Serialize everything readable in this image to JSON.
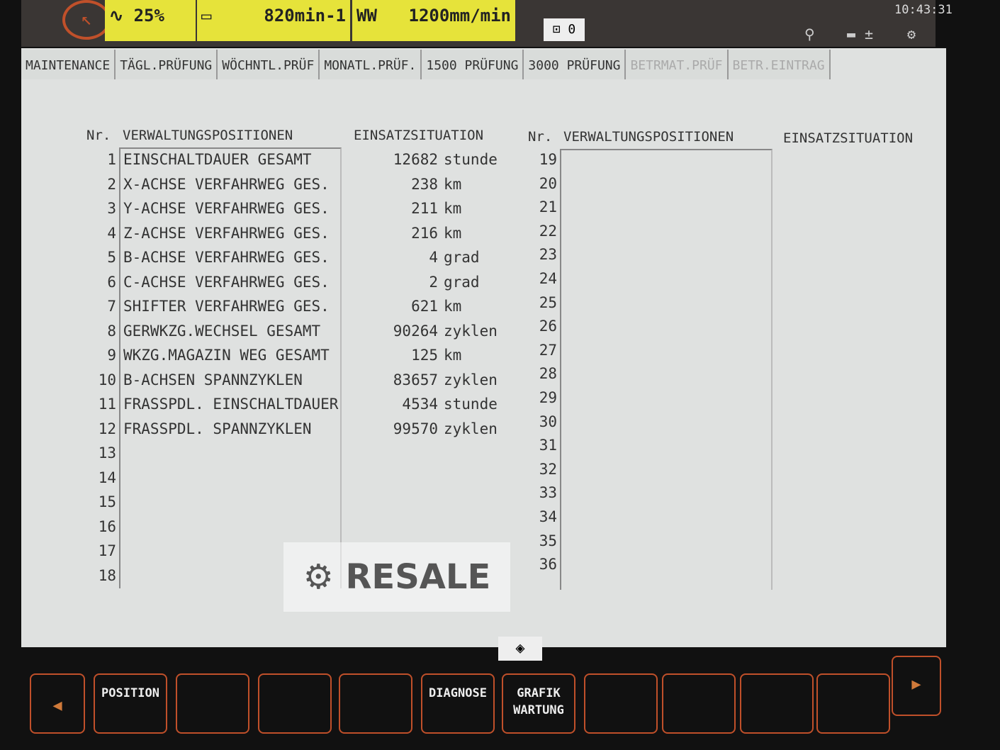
{
  "status": {
    "spindle_override": "25%",
    "spindle_speed": "820min-1",
    "feed": "1200mm/min",
    "tool_number": "0",
    "time": "10:43:31"
  },
  "tabs": [
    {
      "label": "MAINTENANCE"
    },
    {
      "label": "TÄGL.PRÜFUNG"
    },
    {
      "label": "WÖCHNTL.PRÜF"
    },
    {
      "label": "MONATL.PRÜF."
    },
    {
      "label": "1500 PRÜFUNG"
    },
    {
      "label": "3000 PRÜFUNG"
    },
    {
      "label": "BETRMAT.PRÜF",
      "disabled": true
    },
    {
      "label": "BETR.EINTRAG",
      "disabled": true
    }
  ],
  "headers": {
    "nr": "Nr.",
    "positions": "VERWALTUNGSPOSITIONEN",
    "usage": "EINSATZSITUATION"
  },
  "left_rows": [
    {
      "nr": "1",
      "name": "EINSCHALTDAUER GESAMT",
      "value": "12682",
      "unit": "stunde"
    },
    {
      "nr": "2",
      "name": "X-ACHSE VERFAHRWEG GES.",
      "value": "238",
      "unit": "km"
    },
    {
      "nr": "3",
      "name": "Y-ACHSE VERFAHRWEG GES.",
      "value": "211",
      "unit": "km"
    },
    {
      "nr": "4",
      "name": "Z-ACHSE VERFAHRWEG GES.",
      "value": "216",
      "unit": "km"
    },
    {
      "nr": "5",
      "name": "B-ACHSE VERFAHRWEG GES.",
      "value": "4",
      "unit": "grad"
    },
    {
      "nr": "6",
      "name": "C-ACHSE VERFAHRWEG GES.",
      "value": "2",
      "unit": "grad"
    },
    {
      "nr": "7",
      "name": "SHIFTER VERFAHRWEG GES.",
      "value": "621",
      "unit": "km"
    },
    {
      "nr": "8",
      "name": "GERWKZG.WECHSEL GESAMT",
      "value": "90264",
      "unit": "zyklen"
    },
    {
      "nr": "9",
      "name": "WKZG.MAGAZIN WEG GESAMT",
      "value": "125",
      "unit": "km"
    },
    {
      "nr": "10",
      "name": "B-ACHSEN SPANNZYKLEN",
      "value": "83657",
      "unit": "zyklen"
    },
    {
      "nr": "11",
      "name": "FRASSPDL. EINSCHALTDAUER",
      "value": "4534",
      "unit": "stunde"
    },
    {
      "nr": "12",
      "name": "FRASSPDL. SPANNZYKLEN",
      "value": "99570",
      "unit": "zyklen"
    },
    {
      "nr": "13"
    },
    {
      "nr": "14"
    },
    {
      "nr": "15"
    },
    {
      "nr": "16"
    },
    {
      "nr": "17"
    },
    {
      "nr": "18"
    }
  ],
  "right_rows": [
    "19",
    "20",
    "21",
    "22",
    "23",
    "24",
    "25",
    "26",
    "27",
    "28",
    "29",
    "30",
    "31",
    "32",
    "33",
    "34",
    "35",
    "36"
  ],
  "watermark": "RESALE",
  "softkeys": [
    {
      "label": ""
    },
    {
      "label": "POSITION"
    },
    {
      "label": ""
    },
    {
      "label": ""
    },
    {
      "label": ""
    },
    {
      "label": "DIAGNOSE"
    },
    {
      "label": "GRAFIK\nWARTUNG"
    },
    {
      "label": ""
    },
    {
      "label": ""
    },
    {
      "label": ""
    },
    {
      "label": ""
    }
  ],
  "colors": {
    "accent": "#c0502a",
    "status_yellow": "#e6e33a",
    "screen": "#dfe1e0"
  }
}
